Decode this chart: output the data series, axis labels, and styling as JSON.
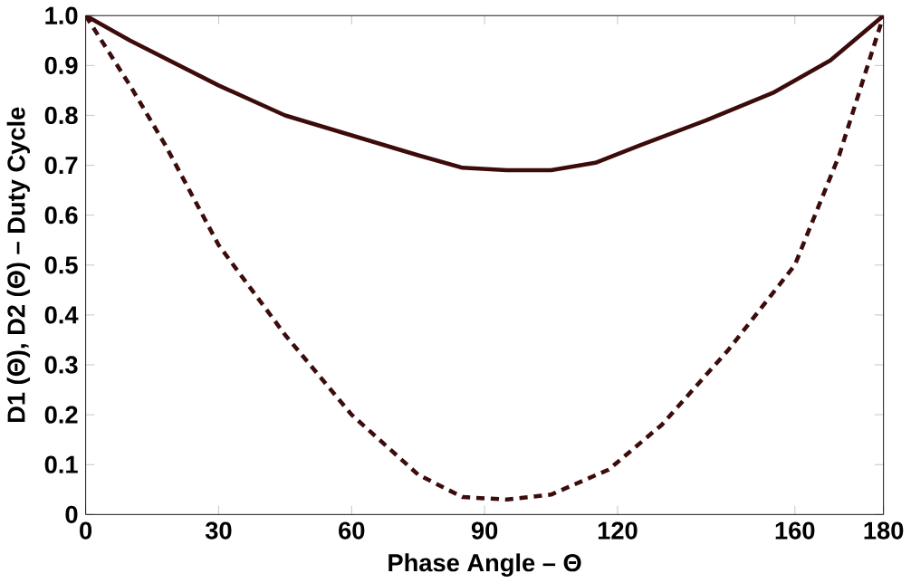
{
  "chart_data": {
    "type": "line",
    "xlabel": "Phase Angle – Θ",
    "ylabel": "D1 (Θ), D2 (Θ) – Duty Cycle",
    "xlim": [
      0,
      180
    ],
    "xticks": [
      0,
      30,
      60,
      90,
      120,
      160,
      180
    ],
    "ylim": [
      0,
      1
    ],
    "yticks": [
      0,
      0.1,
      0.2,
      0.3,
      0.4,
      0.5,
      0.6,
      0.7,
      0.8,
      0.9,
      {
        "value": 1,
        "label": "1.0"
      }
    ],
    "grid": false,
    "marker": "none",
    "series": [
      {
        "color": "#3c0c0c",
        "line_style": "solid",
        "x": [
          0,
          10,
          20,
          30,
          45,
          60,
          75,
          85,
          95,
          105,
          115,
          125,
          140,
          155,
          168,
          180
        ],
        "values": [
          1,
          0.95,
          0.905,
          0.86,
          0.8,
          0.76,
          0.72,
          0.695,
          0.69,
          0.69,
          0.705,
          0.74,
          0.79,
          0.845,
          0.91,
          1
        ]
      },
      {
        "color": "#3c0c0c",
        "line_style": "dashed",
        "x": [
          0,
          10,
          18,
          30,
          45,
          60,
          75,
          85,
          95,
          105,
          118,
          130,
          145,
          160,
          170,
          180
        ],
        "values": [
          1,
          0.86,
          0.74,
          0.54,
          0.36,
          0.2,
          0.08,
          0.035,
          0.03,
          0.04,
          0.09,
          0.18,
          0.33,
          0.5,
          0.72,
          1
        ]
      }
    ]
  }
}
